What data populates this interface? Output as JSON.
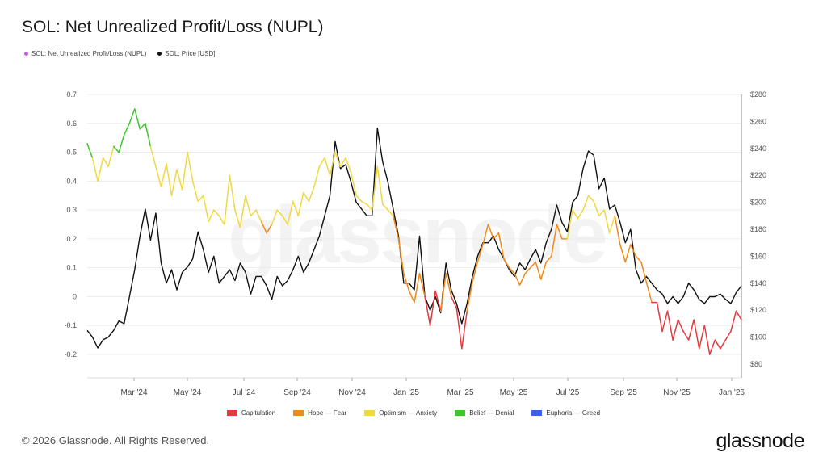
{
  "title": "SOL: Net Unrealized Profit/Loss (NUPL)",
  "legend_top": [
    {
      "label": "SOL: Net Unrealized Profit/Loss (NUPL)",
      "color": "#c45ce0"
    },
    {
      "label": "SOL: Price [USD]",
      "color": "#111111"
    }
  ],
  "watermark": "glassnode",
  "footer": "© 2026 Glassnode. All Rights Reserved.",
  "brand": "glassnode",
  "chart_data": {
    "type": "line",
    "title": "SOL: Net Unrealized Profit/Loss (NUPL)",
    "x_ticks": [
      "Mar '24",
      "May '24",
      "Jul '24",
      "Sep '24",
      "Nov '24",
      "Jan '25",
      "Mar '25",
      "May '25",
      "Jul '25",
      "Sep '25",
      "Nov '25",
      "Jan '26"
    ],
    "y_left": {
      "ticks": [
        "0.7",
        "0.6",
        "0.5",
        "0.4",
        "0.3",
        "0.2",
        "0.1",
        "0",
        "-0.1",
        "-0.2"
      ],
      "range": [
        -0.25,
        0.7
      ]
    },
    "y_right": {
      "ticks": [
        "$280",
        "$260",
        "$240",
        "$220",
        "$200",
        "$180",
        "$160",
        "$140",
        "$120",
        "$100",
        "$80"
      ],
      "range": [
        70,
        280
      ]
    },
    "zones": [
      {
        "name": "Capitulation",
        "color": "#e3393f",
        "min": -1.0,
        "max": 0.0
      },
      {
        "name": "Hope — Fear",
        "color": "#f28a17",
        "min": 0.0,
        "max": 0.25
      },
      {
        "name": "Optimism — Anxiety",
        "color": "#f0d843",
        "min": 0.25,
        "max": 0.5
      },
      {
        "name": "Belief — Denial",
        "color": "#3ec62e",
        "min": 0.5,
        "max": 0.75
      },
      {
        "name": "Euphoria — Greed",
        "color": "#3f5fe6",
        "min": 0.75,
        "max": 1.0
      }
    ],
    "series": [
      {
        "name": "SOL: Net Unrealized Profit/Loss (NUPL)",
        "axis": "left",
        "colored_by_zone": true,
        "points": [
          [
            0,
            0.53
          ],
          [
            5,
            0.48
          ],
          [
            10,
            0.4
          ],
          [
            15,
            0.48
          ],
          [
            20,
            0.45
          ],
          [
            25,
            0.52
          ],
          [
            30,
            0.5
          ],
          [
            35,
            0.56
          ],
          [
            40,
            0.6
          ],
          [
            45,
            0.65
          ],
          [
            50,
            0.58
          ],
          [
            55,
            0.6
          ],
          [
            60,
            0.52
          ],
          [
            65,
            0.45
          ],
          [
            70,
            0.38
          ],
          [
            75,
            0.46
          ],
          [
            80,
            0.35
          ],
          [
            85,
            0.44
          ],
          [
            90,
            0.37
          ],
          [
            95,
            0.5
          ],
          [
            100,
            0.4
          ],
          [
            105,
            0.33
          ],
          [
            110,
            0.35
          ],
          [
            115,
            0.26
          ],
          [
            120,
            0.3
          ],
          [
            125,
            0.28
          ],
          [
            130,
            0.25
          ],
          [
            135,
            0.42
          ],
          [
            140,
            0.3
          ],
          [
            145,
            0.24
          ],
          [
            150,
            0.35
          ],
          [
            155,
            0.28
          ],
          [
            160,
            0.3
          ],
          [
            165,
            0.26
          ],
          [
            170,
            0.22
          ],
          [
            175,
            0.25
          ],
          [
            180,
            0.3
          ],
          [
            185,
            0.28
          ],
          [
            190,
            0.25
          ],
          [
            195,
            0.33
          ],
          [
            200,
            0.28
          ],
          [
            205,
            0.36
          ],
          [
            210,
            0.33
          ],
          [
            215,
            0.38
          ],
          [
            220,
            0.45
          ],
          [
            225,
            0.48
          ],
          [
            230,
            0.42
          ],
          [
            235,
            0.5
          ],
          [
            240,
            0.45
          ],
          [
            245,
            0.48
          ],
          [
            250,
            0.43
          ],
          [
            255,
            0.35
          ],
          [
            260,
            0.33
          ],
          [
            265,
            0.32
          ],
          [
            270,
            0.3
          ],
          [
            275,
            0.45
          ],
          [
            280,
            0.32
          ],
          [
            285,
            0.3
          ],
          [
            290,
            0.28
          ],
          [
            295,
            0.2
          ],
          [
            300,
            0.08
          ],
          [
            305,
            0.02
          ],
          [
            310,
            -0.02
          ],
          [
            315,
            0.08
          ],
          [
            320,
            0.0
          ],
          [
            325,
            -0.1
          ],
          [
            330,
            0.02
          ],
          [
            335,
            -0.05
          ],
          [
            340,
            0.08
          ],
          [
            345,
            0.0
          ],
          [
            350,
            -0.04
          ],
          [
            355,
            -0.18
          ],
          [
            360,
            -0.05
          ],
          [
            365,
            0.05
          ],
          [
            370,
            0.12
          ],
          [
            375,
            0.18
          ],
          [
            380,
            0.25
          ],
          [
            385,
            0.2
          ],
          [
            390,
            0.22
          ],
          [
            395,
            0.13
          ],
          [
            400,
            0.1
          ],
          [
            405,
            0.08
          ],
          [
            410,
            0.04
          ],
          [
            415,
            0.08
          ],
          [
            420,
            0.1
          ],
          [
            425,
            0.12
          ],
          [
            430,
            0.06
          ],
          [
            435,
            0.12
          ],
          [
            440,
            0.14
          ],
          [
            445,
            0.25
          ],
          [
            450,
            0.2
          ],
          [
            455,
            0.2
          ],
          [
            460,
            0.3
          ],
          [
            465,
            0.27
          ],
          [
            470,
            0.3
          ],
          [
            475,
            0.35
          ],
          [
            480,
            0.33
          ],
          [
            485,
            0.28
          ],
          [
            490,
            0.3
          ],
          [
            495,
            0.22
          ],
          [
            500,
            0.28
          ],
          [
            505,
            0.18
          ],
          [
            510,
            0.12
          ],
          [
            515,
            0.18
          ],
          [
            520,
            0.14
          ],
          [
            525,
            0.12
          ],
          [
            530,
            0.05
          ],
          [
            535,
            -0.02
          ],
          [
            540,
            -0.02
          ],
          [
            545,
            -0.12
          ],
          [
            550,
            -0.05
          ],
          [
            555,
            -0.15
          ],
          [
            560,
            -0.08
          ],
          [
            565,
            -0.12
          ],
          [
            570,
            -0.15
          ],
          [
            575,
            -0.08
          ],
          [
            580,
            -0.18
          ],
          [
            585,
            -0.1
          ],
          [
            590,
            -0.2
          ],
          [
            595,
            -0.15
          ],
          [
            600,
            -0.18
          ],
          [
            605,
            -0.15
          ],
          [
            610,
            -0.12
          ],
          [
            615,
            -0.05
          ],
          [
            620,
            -0.08
          ]
        ]
      },
      {
        "name": "SOL: Price [USD]",
        "axis": "right",
        "color": "#111111",
        "points": [
          [
            0,
            105
          ],
          [
            5,
            100
          ],
          [
            10,
            92
          ],
          [
            15,
            98
          ],
          [
            20,
            100
          ],
          [
            25,
            105
          ],
          [
            30,
            112
          ],
          [
            35,
            110
          ],
          [
            40,
            130
          ],
          [
            45,
            150
          ],
          [
            50,
            175
          ],
          [
            55,
            195
          ],
          [
            60,
            172
          ],
          [
            65,
            192
          ],
          [
            70,
            155
          ],
          [
            75,
            140
          ],
          [
            80,
            150
          ],
          [
            85,
            135
          ],
          [
            90,
            148
          ],
          [
            95,
            152
          ],
          [
            100,
            158
          ],
          [
            105,
            178
          ],
          [
            110,
            165
          ],
          [
            115,
            148
          ],
          [
            120,
            160
          ],
          [
            125,
            140
          ],
          [
            130,
            145
          ],
          [
            135,
            150
          ],
          [
            140,
            142
          ],
          [
            145,
            155
          ],
          [
            150,
            148
          ],
          [
            155,
            132
          ],
          [
            160,
            145
          ],
          [
            165,
            145
          ],
          [
            170,
            138
          ],
          [
            175,
            128
          ],
          [
            180,
            145
          ],
          [
            185,
            138
          ],
          [
            190,
            142
          ],
          [
            195,
            150
          ],
          [
            200,
            160
          ],
          [
            205,
            148
          ],
          [
            210,
            155
          ],
          [
            215,
            165
          ],
          [
            220,
            175
          ],
          [
            225,
            190
          ],
          [
            230,
            205
          ],
          [
            235,
            245
          ],
          [
            240,
            225
          ],
          [
            245,
            228
          ],
          [
            250,
            215
          ],
          [
            255,
            200
          ],
          [
            260,
            195
          ],
          [
            265,
            190
          ],
          [
            270,
            190
          ],
          [
            275,
            255
          ],
          [
            280,
            230
          ],
          [
            285,
            215
          ],
          [
            290,
            195
          ],
          [
            295,
            175
          ],
          [
            300,
            140
          ],
          [
            305,
            140
          ],
          [
            310,
            135
          ],
          [
            315,
            175
          ],
          [
            320,
            130
          ],
          [
            325,
            120
          ],
          [
            330,
            130
          ],
          [
            335,
            118
          ],
          [
            340,
            155
          ],
          [
            345,
            135
          ],
          [
            350,
            125
          ],
          [
            355,
            110
          ],
          [
            360,
            125
          ],
          [
            365,
            145
          ],
          [
            370,
            160
          ],
          [
            375,
            170
          ],
          [
            380,
            170
          ],
          [
            385,
            175
          ],
          [
            390,
            165
          ],
          [
            395,
            158
          ],
          [
            400,
            150
          ],
          [
            405,
            145
          ],
          [
            410,
            155
          ],
          [
            415,
            150
          ],
          [
            420,
            158
          ],
          [
            425,
            165
          ],
          [
            430,
            155
          ],
          [
            435,
            170
          ],
          [
            440,
            180
          ],
          [
            445,
            198
          ],
          [
            450,
            185
          ],
          [
            455,
            178
          ],
          [
            460,
            200
          ],
          [
            465,
            205
          ],
          [
            470,
            225
          ],
          [
            475,
            238
          ],
          [
            480,
            235
          ],
          [
            485,
            210
          ],
          [
            490,
            218
          ],
          [
            495,
            195
          ],
          [
            500,
            198
          ],
          [
            505,
            185
          ],
          [
            510,
            170
          ],
          [
            515,
            180
          ],
          [
            520,
            150
          ],
          [
            525,
            140
          ],
          [
            530,
            145
          ],
          [
            535,
            140
          ],
          [
            540,
            135
          ],
          [
            545,
            132
          ],
          [
            550,
            125
          ],
          [
            555,
            130
          ],
          [
            560,
            125
          ],
          [
            565,
            130
          ],
          [
            570,
            140
          ],
          [
            575,
            135
          ],
          [
            580,
            128
          ],
          [
            585,
            125
          ],
          [
            590,
            130
          ],
          [
            595,
            130
          ],
          [
            600,
            132
          ],
          [
            605,
            128
          ],
          [
            610,
            125
          ],
          [
            615,
            133
          ],
          [
            620,
            138
          ]
        ]
      }
    ],
    "x_domain": [
      0,
      620
    ]
  }
}
